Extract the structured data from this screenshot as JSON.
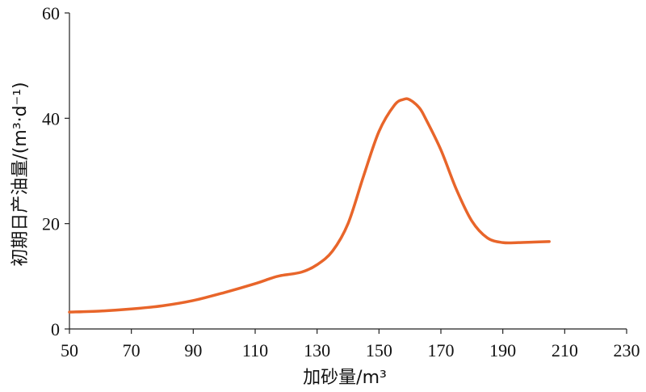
{
  "chart_data": {
    "type": "line",
    "title": "",
    "xlabel": "加砂量/m³",
    "ylabel": "初期日产油量/(m³·d⁻¹)",
    "xlim": [
      50,
      230
    ],
    "ylim": [
      0,
      60
    ],
    "xticks": [
      50,
      70,
      90,
      110,
      130,
      150,
      170,
      190,
      210,
      230
    ],
    "yticks": [
      0,
      20,
      40,
      60
    ],
    "grid": false,
    "legend": "none",
    "series": [
      {
        "color": "#E8652A",
        "x": [
          50,
          60,
          70,
          80,
          90,
          100,
          110,
          115,
          118,
          125,
          130,
          135,
          140,
          145,
          150,
          155,
          158,
          160,
          163,
          165,
          170,
          175,
          180,
          185,
          190,
          195,
          200,
          205
        ],
        "y": [
          3.2,
          3.4,
          3.8,
          4.4,
          5.4,
          6.9,
          8.6,
          9.6,
          10.1,
          10.8,
          12.2,
          14.8,
          20,
          29,
          37.5,
          42.5,
          43.6,
          43.5,
          42,
          40,
          34,
          26.5,
          20.5,
          17.3,
          16.4,
          16.4,
          16.5,
          16.6
        ]
      }
    ]
  }
}
